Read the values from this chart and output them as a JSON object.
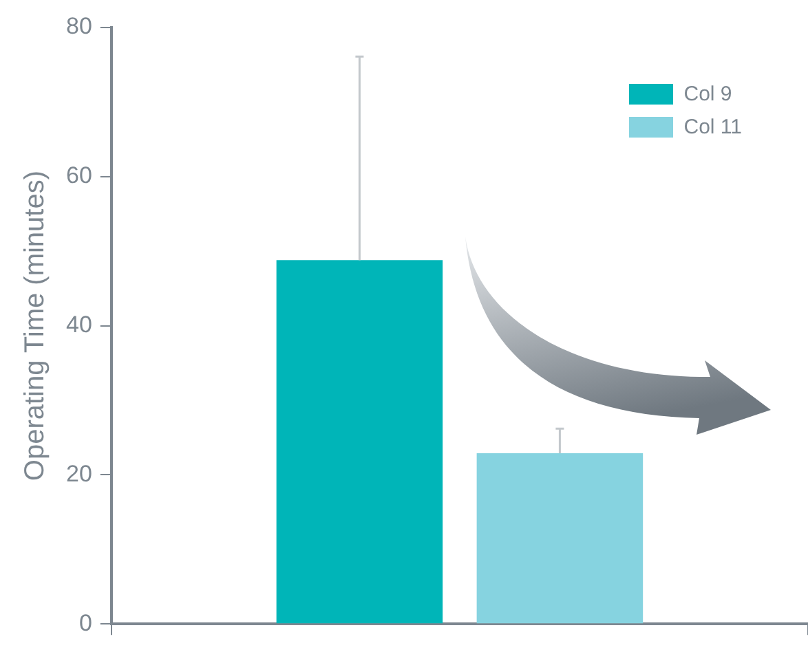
{
  "chart_data": {
    "type": "bar",
    "ylabel": "Operating Time (minutes)",
    "categories": [
      null
    ],
    "series": [
      {
        "name": "Col 9",
        "color": "#00b5b8",
        "values": [
          48.8
        ],
        "errors": [
          [
            48.8,
            76.1
          ]
        ]
      },
      {
        "name": "Col 11",
        "color": "#86d3e0",
        "values": [
          22.9
        ],
        "errors": [
          [
            22.9,
            26.2
          ]
        ]
      }
    ],
    "ylim": [
      0,
      80
    ],
    "yticks": [
      0,
      20,
      40,
      60,
      80
    ],
    "grid": false,
    "legend": "top right"
  }
}
